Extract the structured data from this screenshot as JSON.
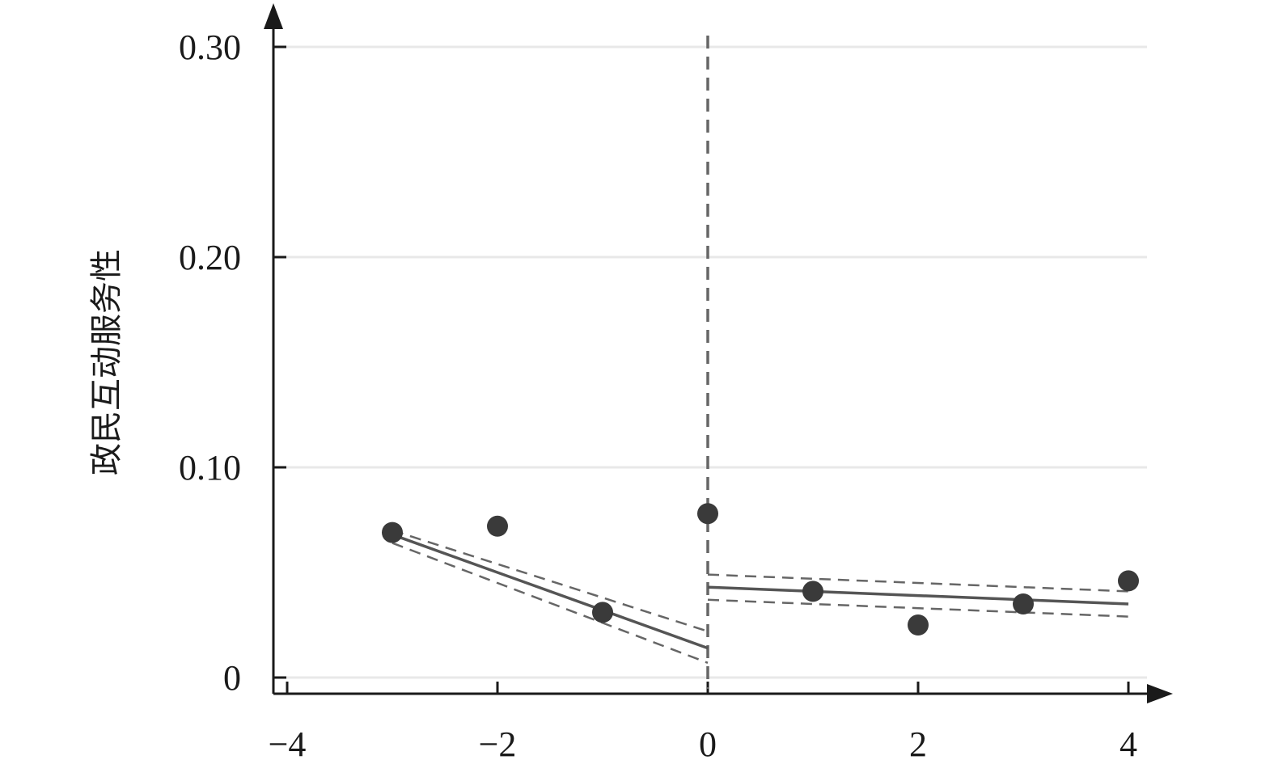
{
  "chart_data": {
    "type": "scatter",
    "title": "",
    "xlabel": "",
    "ylabel": "政民互动服务性",
    "xlim": [
      -4.15,
      4.2
    ],
    "ylim": [
      -0.0075,
      0.3
    ],
    "x_ticks": [
      -4,
      -2,
      0,
      2,
      4
    ],
    "x_tick_labels": [
      "−4",
      "−2",
      "0",
      "2",
      "4"
    ],
    "y_ticks": [
      0,
      0.1,
      0.2,
      0.3
    ],
    "y_tick_labels": [
      "0",
      "0.10",
      "0.20",
      "0.30"
    ],
    "grid": "horizontal",
    "cutoff_x": 0,
    "points": [
      {
        "x": -3,
        "y": 0.069
      },
      {
        "x": -2,
        "y": 0.072
      },
      {
        "x": -1,
        "y": 0.031
      },
      {
        "x": 0,
        "y": 0.078
      },
      {
        "x": 1,
        "y": 0.041
      },
      {
        "x": 2,
        "y": 0.025
      },
      {
        "x": 3,
        "y": 0.035
      },
      {
        "x": 4,
        "y": 0.046
      }
    ],
    "fit_lines": [
      {
        "segment": "left",
        "x": [
          -3,
          0
        ],
        "fit": [
          0.068,
          0.014
        ],
        "ci_upper": [
          0.07,
          0.022
        ],
        "ci_lower": [
          0.064,
          0.007
        ]
      },
      {
        "segment": "right",
        "x": [
          0,
          4
        ],
        "fit": [
          0.043,
          0.035
        ],
        "ci_upper": [
          0.049,
          0.041
        ],
        "ci_lower": [
          0.037,
          0.029
        ]
      }
    ],
    "colors": {
      "points": "#3a3a3a",
      "fit": "#555555",
      "ci": "#666666",
      "cutoff": "#666666",
      "grid": "#e8e8e8",
      "axis": "#1a1a1a"
    }
  }
}
